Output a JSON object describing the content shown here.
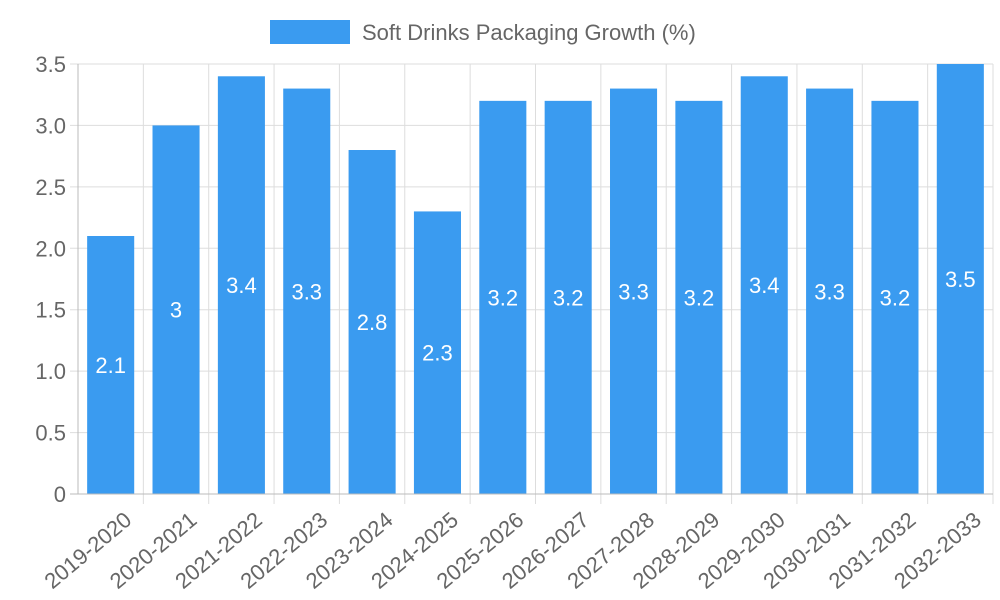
{
  "chart_data": {
    "type": "bar",
    "title": "",
    "xlabel": "",
    "ylabel": "",
    "legend_position": "top-center",
    "grid": true,
    "ylim": [
      0,
      3.5
    ],
    "yticks": [
      "0",
      "0.5",
      "1.0",
      "1.5",
      "2.0",
      "2.5",
      "3.0",
      "3.5"
    ],
    "categories": [
      "2019-2020",
      "2020-2021",
      "2021-2022",
      "2022-2023",
      "2023-2024",
      "2024-2025",
      "2025-2026",
      "2026-2027",
      "2027-2028",
      "2028-2029",
      "2029-2030",
      "2030-2031",
      "2031-2032",
      "2032-2033"
    ],
    "series": [
      {
        "name": "Soft Drinks Packaging Growth (%)",
        "color": "#3a9bf0",
        "values": [
          2.1,
          3,
          3.4,
          3.3,
          2.8,
          2.3,
          3.2,
          3.2,
          3.3,
          3.2,
          3.4,
          3.3,
          3.2,
          3.5
        ],
        "labels": [
          "2.1",
          "3",
          "3.4",
          "3.3",
          "2.8",
          "2.3",
          "3.2",
          "3.2",
          "3.3",
          "3.2",
          "3.4",
          "3.3",
          "3.2",
          "3.5"
        ]
      }
    ]
  }
}
